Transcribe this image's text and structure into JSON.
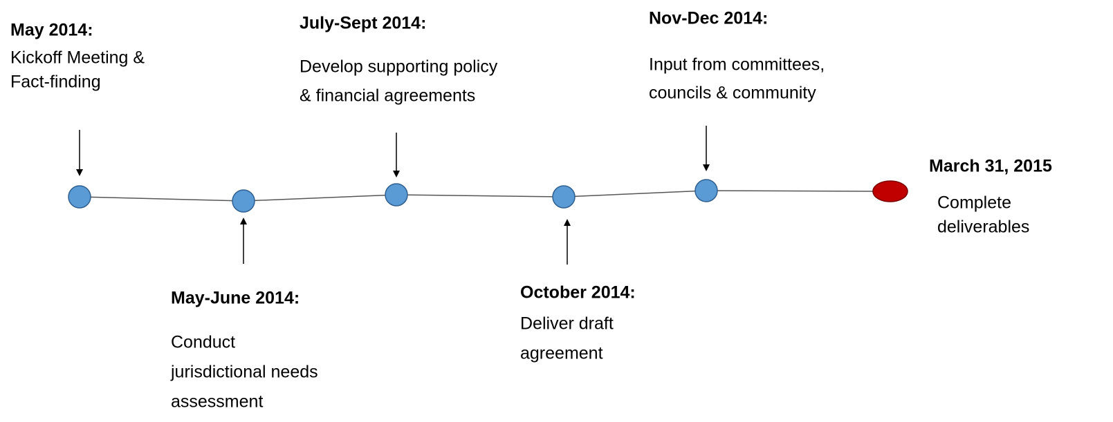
{
  "milestones": [
    {
      "date": "May 2014:",
      "description": [
        "Kickoff Meeting &",
        "Fact-finding"
      ]
    },
    {
      "date": "May-June 2014:",
      "description": [
        "Conduct",
        "jurisdictional needs",
        "assessment"
      ]
    },
    {
      "date": "July-Sept 2014:",
      "description": [
        "Develop supporting policy",
        "& financial agreements"
      ]
    },
    {
      "date": "October 2014:",
      "description": [
        "Deliver draft",
        "agreement"
      ]
    },
    {
      "date": "Nov-Dec 2014:",
      "description": [
        "Input from committees,",
        "councils & community"
      ]
    },
    {
      "date": "March 31, 2015",
      "description": [
        "Complete",
        "deliverables"
      ]
    }
  ]
}
